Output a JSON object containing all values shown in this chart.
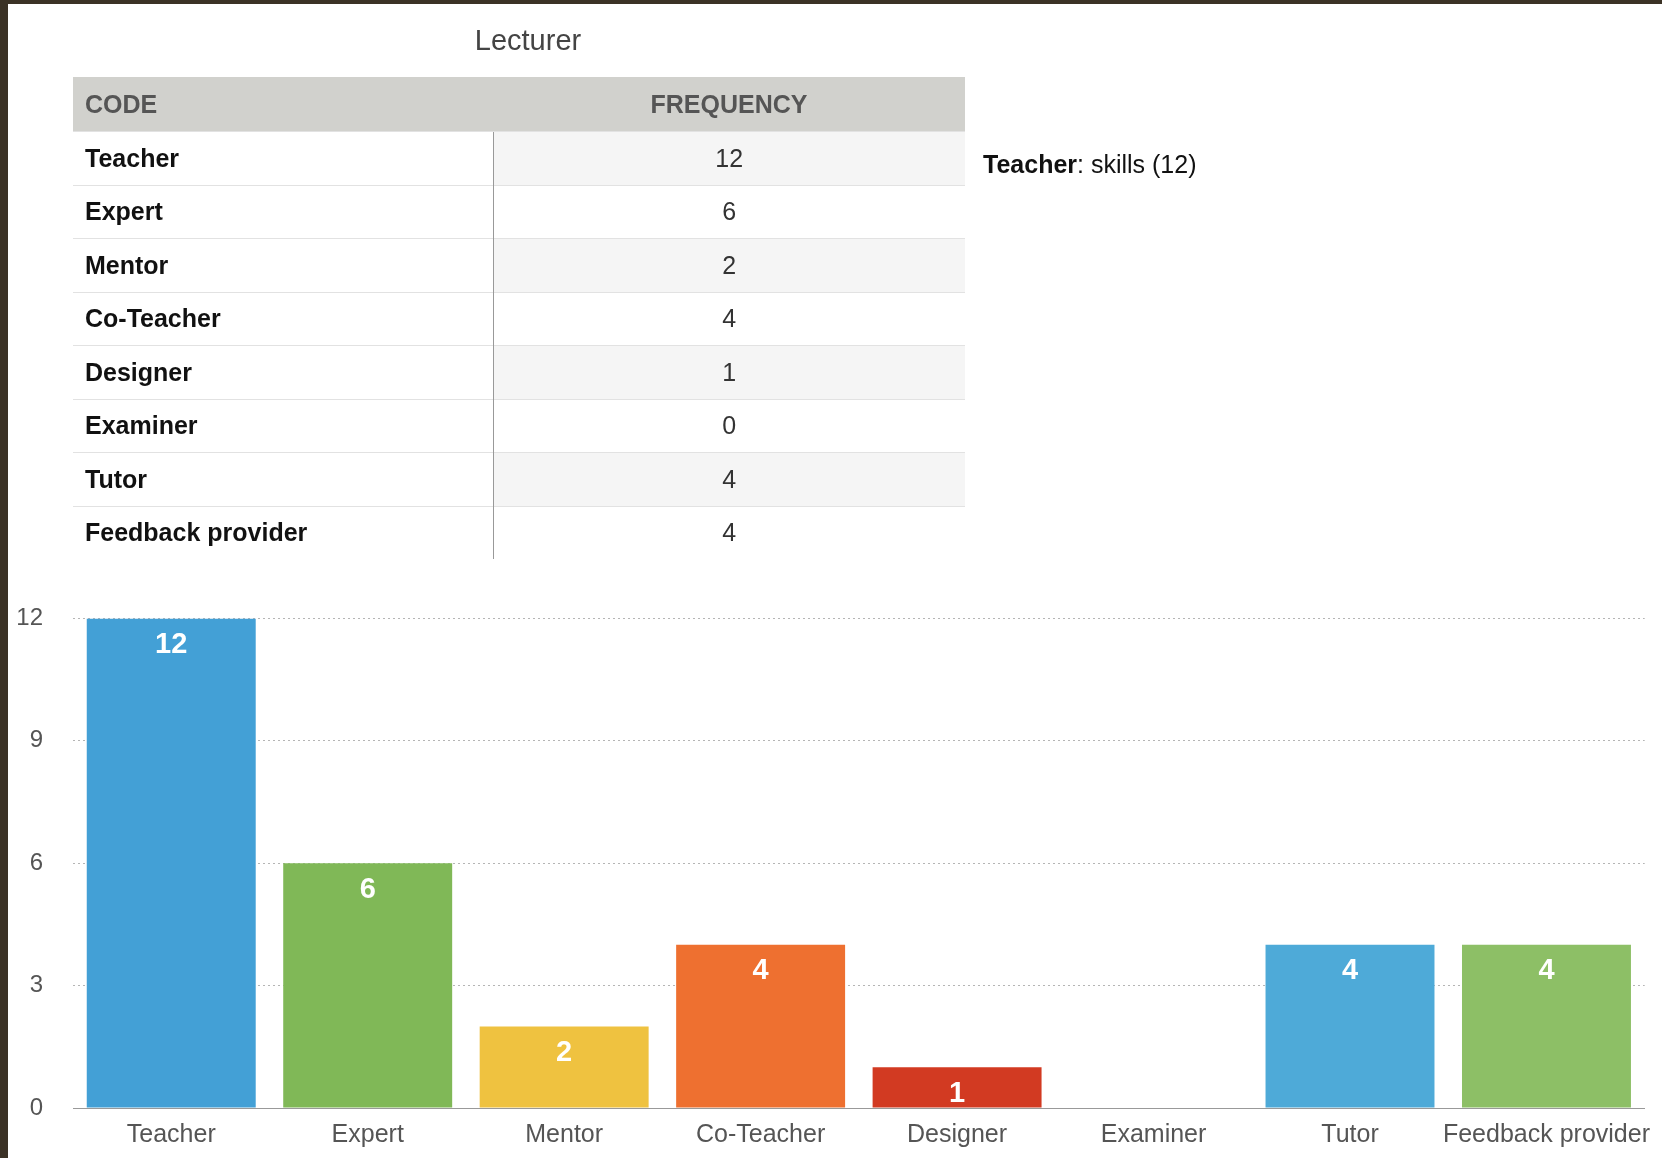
{
  "chart_data": {
    "type": "bar",
    "title": "Lecturer",
    "categories": [
      "Teacher",
      "Expert",
      "Mentor",
      "Co-Teacher",
      "Designer",
      "Examiner",
      "Tutor",
      "Feedback provider"
    ],
    "values": [
      12,
      6,
      2,
      4,
      1,
      0,
      4,
      4
    ],
    "colors": [
      "#43a0d6",
      "#80b857",
      "#efc240",
      "#ee7030",
      "#d23a22",
      "#9a9a9a",
      "#4eaad8",
      "#8dbf66"
    ],
    "ylim": [
      0,
      12
    ],
    "yticks": [
      0,
      3,
      6,
      9,
      12
    ],
    "grid": "y",
    "legend": false,
    "value_labels": [
      "12",
      "6",
      "2",
      "4",
      "1",
      null,
      "4",
      "4"
    ],
    "annotations": [
      "CODE",
      "FREQUENCY",
      "Teacher: skills (12)",
      "12",
      "6",
      "2",
      "4",
      "1",
      "0",
      "4",
      "4"
    ]
  }
}
